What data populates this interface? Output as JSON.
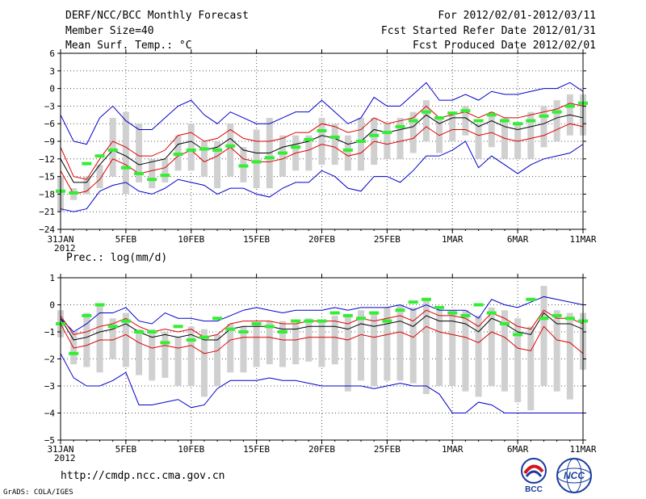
{
  "header": {
    "title": "DERF/NCC/BCC Monthly Forecast",
    "member_size": "Member Size=40",
    "variable1": "Mean Surf. Temp.: °C",
    "period": "For 2012/02/01-2012/03/11",
    "fcst_start": "Fcst Started Refer Date 2012/01/31",
    "fcst_produced": "Fcst Produced Date 2012/02/01"
  },
  "panel2_label": "Prec.: log(mm/d)",
  "footer": {
    "url": "http://cmdp.ncc.cma.gov.cn",
    "credit": "GrADS: COLA/IGES",
    "logo_bcc": "BCC",
    "logo_ncc": "NCC"
  },
  "colors": {
    "envelope": "#0000cc",
    "spread": "#dd0000",
    "mean": "#000000",
    "box": "#d0d0d0",
    "climatology": "#33ee33"
  },
  "chart_data": [
    {
      "type": "line",
      "title": "Mean Surf. Temp.: °C",
      "x_ticks": [
        0,
        5,
        10,
        15,
        20,
        25,
        30,
        35,
        40
      ],
      "x_tick_labels": [
        "31JAN",
        "5FEB",
        "10FEB",
        "15FEB",
        "20FEB",
        "25FEB",
        "1MAR",
        "6MAR",
        "11MAR"
      ],
      "x_year": "2012",
      "xlim": [
        0,
        40
      ],
      "ylim": [
        -24,
        6
      ],
      "y_ticks": [
        6,
        3,
        0,
        -3,
        -6,
        -9,
        -12,
        -15,
        -18,
        -21,
        -24
      ],
      "grid": true,
      "series": [
        {
          "name": "max",
          "color": "#0000cc",
          "values": [
            -4.5,
            -9,
            -9.5,
            -5,
            -3,
            -5.5,
            -7,
            -7,
            -5,
            -3,
            -2,
            -4.5,
            -6,
            -4,
            -5,
            -6,
            -6,
            -5,
            -4,
            -4,
            -2,
            -4,
            -6,
            -5,
            -1.5,
            -3,
            -3,
            -1,
            1,
            -2,
            -2,
            -1,
            -2,
            -0.5,
            -1,
            -1,
            -0.5,
            0,
            0,
            1,
            -0.5
          ]
        },
        {
          "name": "upper",
          "color": "#dd0000",
          "values": [
            -10,
            -15,
            -15.5,
            -12,
            -9,
            -10,
            -11.5,
            -11.5,
            -10.5,
            -8,
            -7.5,
            -9,
            -8.5,
            -7,
            -8.5,
            -9,
            -9,
            -8.5,
            -7.5,
            -7.5,
            -6,
            -6.5,
            -7.5,
            -7,
            -5,
            -6,
            -5.5,
            -5,
            -3,
            -5,
            -4.5,
            -4,
            -5,
            -4,
            -5,
            -5,
            -4.5,
            -4,
            -3.5,
            -2.5,
            -3
          ]
        },
        {
          "name": "mean",
          "color": "#000000",
          "values": [
            -12,
            -16,
            -16,
            -13,
            -10.5,
            -11.5,
            -13,
            -12.5,
            -12,
            -9.5,
            -9,
            -10.5,
            -10,
            -8.5,
            -10.5,
            -11,
            -11,
            -10,
            -9.5,
            -9,
            -8,
            -8.5,
            -9.5,
            -9,
            -7,
            -7.5,
            -7,
            -6.5,
            -4.5,
            -6,
            -5,
            -5,
            -6.5,
            -5.5,
            -6.5,
            -7,
            -6.5,
            -6,
            -5,
            -4.5,
            -5
          ]
        },
        {
          "name": "lower",
          "color": "#dd0000",
          "values": [
            -14,
            -18,
            -17.5,
            -15.5,
            -12,
            -13,
            -14.5,
            -14,
            -13.5,
            -11.5,
            -10.5,
            -12.5,
            -11.5,
            -10,
            -12,
            -12.5,
            -12.5,
            -12,
            -11,
            -10.5,
            -9.5,
            -10,
            -11.5,
            -11,
            -9,
            -9.5,
            -9,
            -8.5,
            -6.5,
            -8,
            -7,
            -7,
            -8,
            -7.5,
            -8.5,
            -9,
            -8.5,
            -8,
            -7,
            -6,
            -6.5
          ]
        },
        {
          "name": "min",
          "color": "#0000cc",
          "values": [
            -20.5,
            -21,
            -20.5,
            -17.5,
            -16.5,
            -16,
            -17.5,
            -18,
            -17,
            -15.5,
            -16,
            -16.5,
            -18,
            -17,
            -17,
            -18,
            -18.5,
            -17,
            -16,
            -16,
            -14,
            -15,
            -17,
            -17.5,
            -15,
            -15,
            -16,
            -14,
            -11.5,
            -11.5,
            -10.5,
            -9,
            -13.5,
            -11.5,
            -13,
            -14.5,
            -13,
            -12,
            -11.5,
            -11,
            -9.5
          ]
        }
      ],
      "boxes": [
        [
          -21,
          -15
        ],
        [
          -19,
          -17
        ],
        [
          -18,
          -15
        ],
        [
          -17,
          -13
        ],
        [
          -15,
          -5
        ],
        [
          -18,
          -4
        ],
        [
          -16,
          -6
        ],
        [
          -17,
          -12
        ],
        [
          -16,
          -12
        ],
        [
          -14,
          -8
        ],
        [
          -14,
          -6
        ],
        [
          -15,
          -9
        ],
        [
          -17,
          -9
        ],
        [
          -15,
          -6
        ],
        [
          -16,
          -10
        ],
        [
          -17,
          -7
        ],
        [
          -17,
          -5
        ],
        [
          -15,
          -8
        ],
        [
          -14,
          -8
        ],
        [
          -14,
          -8
        ],
        [
          -13,
          -5
        ],
        [
          -13,
          -6
        ],
        [
          -14,
          -8
        ],
        [
          -14,
          -5
        ],
        [
          -13,
          -5
        ],
        [
          -12,
          -6
        ],
        [
          -12,
          -5
        ],
        [
          -11,
          -4
        ],
        [
          -9,
          -2
        ],
        [
          -11,
          -5
        ],
        [
          -9,
          -4
        ],
        [
          -8,
          -3
        ],
        [
          -12,
          -6
        ],
        [
          -10,
          -4
        ],
        [
          -12,
          -5
        ],
        [
          -12,
          -6
        ],
        [
          -12,
          -4
        ],
        [
          -10,
          -3
        ],
        [
          -9,
          -2
        ],
        [
          -8,
          -1
        ],
        [
          -8,
          -1
        ]
      ],
      "climatology": [
        -17.5,
        -17.8,
        -12.8,
        -11.5,
        -10.5,
        -13.5,
        -14.5,
        -15.5,
        -14.8,
        -11.2,
        -10.5,
        -10.3,
        -10.5,
        -9.8,
        -13.2,
        -12.5,
        -11.8,
        -11.0,
        -10.0,
        -8.7,
        -7.2,
        -8.3,
        -10.5,
        -9.0,
        -8.0,
        -7.5,
        -6.5,
        -5.5,
        -4.0,
        -5.0,
        -4.2,
        -3.8,
        -5.5,
        -4.5,
        -5.5,
        -6.0,
        -5.5,
        -4.7,
        -4.0,
        -3.0,
        -2.5
      ]
    },
    {
      "type": "line",
      "title": "Prec.: log(mm/d)",
      "x_ticks": [
        0,
        5,
        10,
        15,
        20,
        25,
        30,
        35,
        40
      ],
      "x_tick_labels": [
        "31JAN",
        "5FEB",
        "10FEB",
        "15FEB",
        "20FEB",
        "25FEB",
        "1MAR",
        "6MAR",
        "11MAR"
      ],
      "x_year": "2012",
      "xlim": [
        0,
        40
      ],
      "ylim": [
        -5,
        1
      ],
      "y_ticks": [
        1,
        0,
        -1,
        -2,
        -3,
        -4,
        -5
      ],
      "grid": true,
      "series": [
        {
          "name": "max",
          "color": "#0000cc",
          "values": [
            -0.5,
            -1.0,
            -0.7,
            -0.3,
            -0.3,
            -0.1,
            -0.6,
            -0.7,
            -0.3,
            -0.5,
            -0.5,
            -0.6,
            -0.6,
            -0.4,
            -0.2,
            -0.1,
            -0.2,
            -0.3,
            -0.2,
            -0.2,
            -0.2,
            -0.1,
            -0.2,
            -0.1,
            -0.1,
            -0.1,
            0.0,
            -0.2,
            0.0,
            -0.2,
            -0.2,
            -0.2,
            -0.5,
            0.2,
            0.0,
            -0.1,
            0.1,
            0.3,
            0.2,
            0.1,
            0.0
          ]
        },
        {
          "name": "upper",
          "color": "#dd0000",
          "values": [
            -0.4,
            -1.1,
            -1.0,
            -0.8,
            -0.7,
            -0.5,
            -0.8,
            -1.0,
            -0.9,
            -1.0,
            -0.9,
            -1.2,
            -1.1,
            -0.7,
            -0.6,
            -0.6,
            -0.6,
            -0.7,
            -0.7,
            -0.6,
            -0.6,
            -0.6,
            -0.7,
            -0.5,
            -0.6,
            -0.5,
            -0.4,
            -0.6,
            -0.2,
            -0.4,
            -0.4,
            -0.5,
            -0.8,
            -0.3,
            -0.5,
            -0.8,
            -0.9,
            -0.2,
            -0.5,
            -0.5,
            -0.7
          ]
        },
        {
          "name": "mean",
          "color": "#000000",
          "values": [
            -0.5,
            -1.3,
            -1.2,
            -1.0,
            -0.9,
            -0.7,
            -1.0,
            -1.2,
            -1.1,
            -1.2,
            -1.1,
            -1.3,
            -1.3,
            -0.9,
            -0.8,
            -0.8,
            -0.8,
            -0.9,
            -0.9,
            -0.8,
            -0.8,
            -0.8,
            -0.9,
            -0.7,
            -0.8,
            -0.7,
            -0.6,
            -0.8,
            -0.4,
            -0.6,
            -0.6,
            -0.7,
            -1.0,
            -0.5,
            -0.7,
            -1.0,
            -1.1,
            -0.3,
            -0.7,
            -0.7,
            -0.9
          ]
        },
        {
          "name": "lower",
          "color": "#dd0000",
          "values": [
            -0.7,
            -1.6,
            -1.5,
            -1.3,
            -1.3,
            -1.1,
            -1.4,
            -1.6,
            -1.5,
            -1.6,
            -1.5,
            -1.8,
            -1.7,
            -1.3,
            -1.2,
            -1.2,
            -1.2,
            -1.3,
            -1.3,
            -1.2,
            -1.2,
            -1.2,
            -1.3,
            -1.1,
            -1.2,
            -1.1,
            -1.0,
            -1.2,
            -0.8,
            -1.0,
            -1.1,
            -1.2,
            -1.4,
            -1.0,
            -1.2,
            -1.6,
            -1.7,
            -0.8,
            -1.3,
            -1.4,
            -1.8
          ]
        },
        {
          "name": "min",
          "color": "#0000cc",
          "values": [
            -1.8,
            -2.7,
            -3.0,
            -3.0,
            -2.8,
            -2.5,
            -3.7,
            -3.7,
            -3.6,
            -3.5,
            -3.8,
            -3.7,
            -3.1,
            -2.8,
            -2.8,
            -2.8,
            -2.7,
            -2.8,
            -2.8,
            -2.9,
            -3.0,
            -3.0,
            -3.0,
            -3.0,
            -3.1,
            -3.0,
            -2.9,
            -3.0,
            -3.0,
            -3.3,
            -4.0,
            -4.0,
            -3.6,
            -3.7,
            -4.0,
            -4.0,
            -4.0,
            -4.0,
            -4.0,
            -4.0,
            -4.0
          ]
        }
      ],
      "boxes": [
        [
          -1.2,
          -0.2
        ],
        [
          -2.2,
          -1.0
        ],
        [
          -2.3,
          -0.3
        ],
        [
          -2.5,
          0.0
        ],
        [
          -2.0,
          -0.5
        ],
        [
          -2.3,
          -0.3
        ],
        [
          -2.6,
          -0.9
        ],
        [
          -2.8,
          -0.9
        ],
        [
          -2.7,
          -1.0
        ],
        [
          -3.0,
          -1.2
        ],
        [
          -3.0,
          -0.8
        ],
        [
          -3.4,
          -0.9
        ],
        [
          -3.0,
          -1.1
        ],
        [
          -2.5,
          -0.7
        ],
        [
          -2.5,
          -0.8
        ],
        [
          -2.3,
          -0.7
        ],
        [
          -2.2,
          -0.6
        ],
        [
          -2.3,
          -0.6
        ],
        [
          -2.2,
          -0.7
        ],
        [
          -2.1,
          -0.5
        ],
        [
          -2.3,
          -0.6
        ],
        [
          -2.2,
          -0.4
        ],
        [
          -3.2,
          -0.4
        ],
        [
          -2.8,
          -0.2
        ],
        [
          -3.0,
          -0.3
        ],
        [
          -2.8,
          -0.1
        ],
        [
          -2.8,
          0.0
        ],
        [
          -2.9,
          -0.1
        ],
        [
          -3.3,
          0.2
        ],
        [
          -3.0,
          -0.1
        ],
        [
          -3.0,
          -0.2
        ],
        [
          -3.2,
          -0.2
        ],
        [
          -3.4,
          -0.4
        ],
        [
          -3.0,
          -0.1
        ],
        [
          -3.2,
          -0.2
        ],
        [
          -3.6,
          -0.5
        ],
        [
          -3.9,
          -0.8
        ],
        [
          -3.0,
          0.7
        ],
        [
          -3.2,
          -0.2
        ],
        [
          -3.5,
          -0.3
        ],
        [
          -2.4,
          -0.3
        ]
      ],
      "climatology": [
        -0.7,
        -1.8,
        -0.4,
        0.0,
        -0.8,
        -0.6,
        -1.0,
        -1.0,
        -1.4,
        -0.8,
        -1.3,
        -1.2,
        -0.5,
        -0.9,
        -1.0,
        -0.7,
        -0.8,
        -1.0,
        -0.6,
        -0.6,
        -0.6,
        -0.3,
        -0.4,
        -0.5,
        -0.3,
        -0.6,
        -0.2,
        0.1,
        0.2,
        -0.1,
        -0.3,
        -0.4,
        0.0,
        -0.3,
        -0.7,
        -1.1,
        0.2,
        -0.5,
        -0.4,
        -0.5,
        -0.6
      ]
    }
  ]
}
